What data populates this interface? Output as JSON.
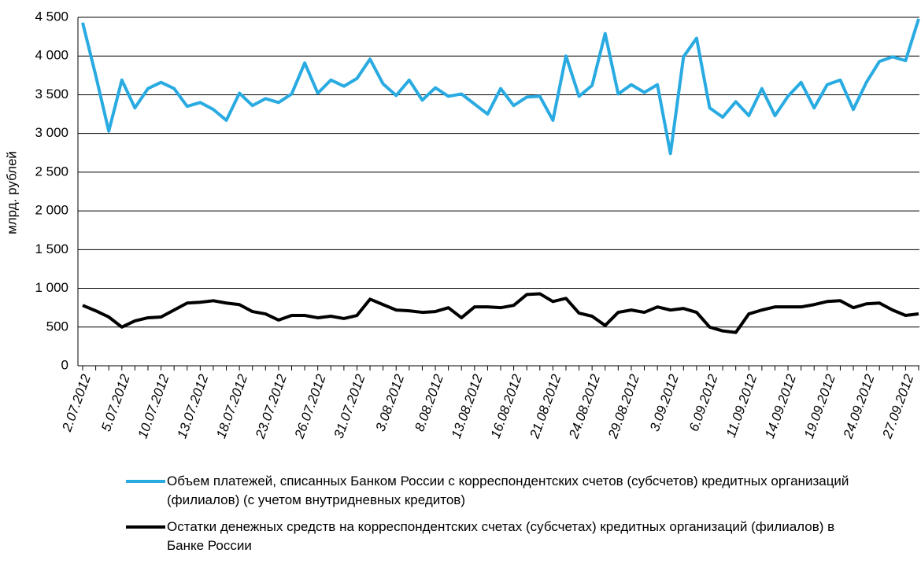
{
  "chart_data": {
    "type": "line",
    "y_label": "млрд. рублей",
    "categories": [
      "2.07.2012",
      null,
      null,
      "5.07.2012",
      null,
      null,
      "10.07.2012",
      null,
      null,
      "13.07.2012",
      null,
      null,
      "18.07.2012",
      null,
      null,
      "23.07.2012",
      null,
      null,
      "26.07.2012",
      null,
      null,
      "31.07.2012",
      null,
      null,
      "3.08.2012",
      null,
      null,
      "8.08.2012",
      null,
      null,
      "13.08.2012",
      null,
      null,
      "16.08.2012",
      null,
      null,
      "21.08.2012",
      null,
      null,
      "24.08.2012",
      null,
      null,
      "29.08.2012",
      null,
      null,
      "3.09.2012",
      null,
      null,
      "6.09.2012",
      null,
      null,
      "11.09.2012",
      null,
      null,
      "14.09.2012",
      null,
      null,
      "19.09.2012",
      null,
      null,
      "24.09.2012",
      null,
      null,
      "27.09.2012",
      null
    ],
    "series": [
      {
        "name": "Объем платежей, списанных Банком России с корреспондентских счетов (субсчетов) кредитных организаций (филиалов) (с учетом внутридневных кредитов)",
        "color": "#29abe2",
        "values": [
          4430,
          3750,
          3030,
          3690,
          3330,
          3580,
          3660,
          3580,
          3350,
          3400,
          3310,
          3170,
          3520,
          3360,
          3450,
          3400,
          3510,
          3910,
          3520,
          3690,
          3610,
          3710,
          3960,
          3640,
          3490,
          3690,
          3430,
          3590,
          3480,
          3510,
          3380,
          3250,
          3580,
          3360,
          3470,
          3480,
          3170,
          4000,
          3480,
          3620,
          4290,
          3510,
          3630,
          3530,
          3630,
          2740,
          3990,
          4230,
          3330,
          3210,
          3410,
          3230,
          3580,
          3230,
          3480,
          3660,
          3330,
          3630,
          3690,
          3310,
          3660,
          3930,
          3990,
          3940,
          4480
        ]
      },
      {
        "name": "Остатки денежных средств на корреспондентских счетах (субсчетах) кредитных организаций (филиалов) в Банке России",
        "color": "#000000",
        "values": [
          780,
          710,
          630,
          500,
          580,
          620,
          630,
          720,
          810,
          820,
          840,
          810,
          790,
          700,
          670,
          590,
          650,
          650,
          620,
          640,
          610,
          650,
          860,
          790,
          720,
          710,
          690,
          700,
          750,
          620,
          760,
          760,
          750,
          780,
          920,
          930,
          830,
          870,
          680,
          640,
          520,
          690,
          720,
          690,
          760,
          720,
          740,
          690,
          500,
          450,
          430,
          670,
          720,
          760,
          760,
          760,
          790,
          830,
          840,
          750,
          800,
          810,
          720,
          650,
          670
        ]
      }
    ],
    "ylim": [
      0,
      4500
    ],
    "yticks": [
      0,
      500,
      {
        "value": 1000,
        "label": "1 000"
      },
      {
        "value": 1500,
        "label": "1 500"
      },
      {
        "value": 2000,
        "label": "2 000"
      },
      {
        "value": 2500,
        "label": "2 500"
      },
      {
        "value": 3000,
        "label": "3 000"
      },
      {
        "value": 3500,
        "label": "3 500"
      },
      {
        "value": 4000,
        "label": "4 000"
      },
      {
        "value": 4500,
        "label": "4 500"
      }
    ],
    "grid": true
  }
}
